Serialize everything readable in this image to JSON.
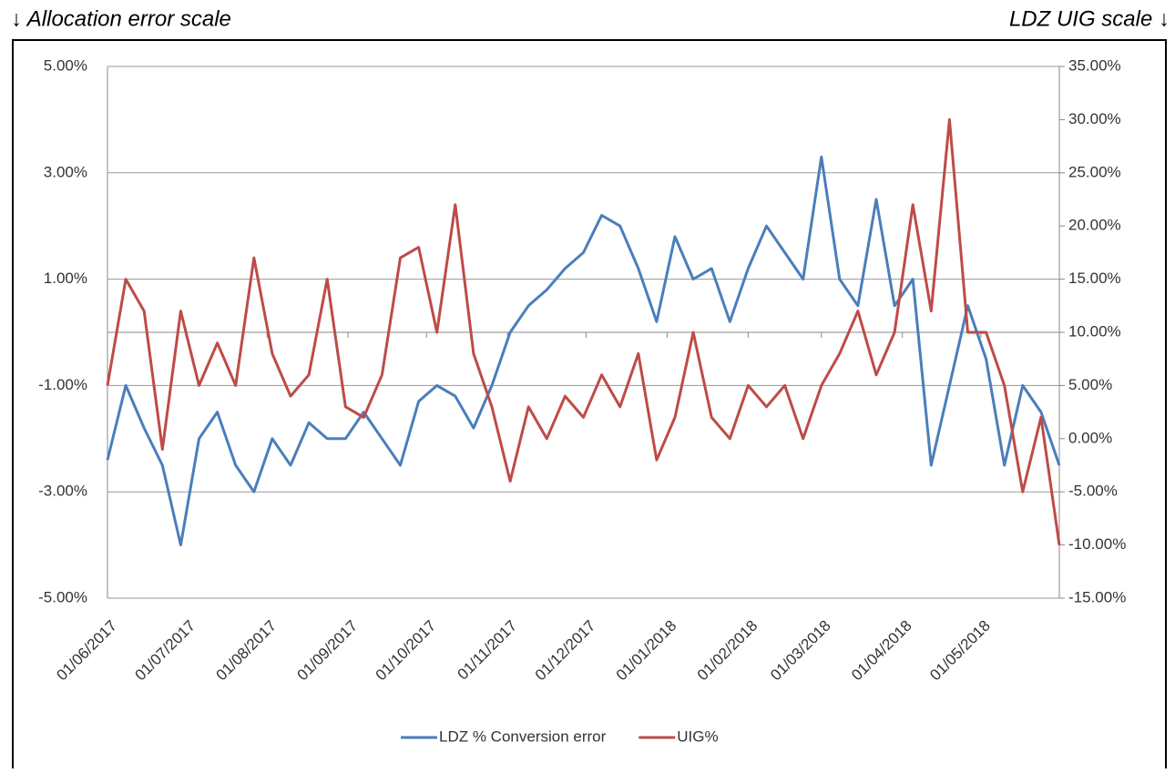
{
  "chart_data": {
    "type": "line",
    "left_note": "↓ Allocation error scale",
    "right_note": "LDZ UIG scale ↓",
    "x": [
      "01/06/2017",
      "08/06/2017",
      "15/06/2017",
      "22/06/2017",
      "29/06/2017",
      "06/07/2017",
      "13/07/2017",
      "20/07/2017",
      "27/07/2017",
      "03/08/2017",
      "10/08/2017",
      "17/08/2017",
      "24/08/2017",
      "31/08/2017",
      "07/09/2017",
      "14/09/2017",
      "21/09/2017",
      "28/09/2017",
      "05/10/2017",
      "12/10/2017",
      "19/10/2017",
      "26/10/2017",
      "02/11/2017",
      "09/11/2017",
      "16/11/2017",
      "23/11/2017",
      "30/11/2017",
      "07/12/2017",
      "14/12/2017",
      "21/12/2017",
      "28/12/2017",
      "04/01/2018",
      "11/01/2018",
      "18/01/2018",
      "25/01/2018",
      "01/02/2018",
      "08/02/2018",
      "15/02/2018",
      "22/02/2018",
      "01/03/2018",
      "08/03/2018",
      "15/03/2018",
      "22/03/2018",
      "29/03/2018",
      "05/04/2018",
      "12/04/2018",
      "19/04/2018",
      "26/04/2018",
      "03/05/2018",
      "10/05/2018",
      "17/05/2018",
      "24/05/2018",
      "31/05/2018"
    ],
    "xlim": [
      "01/06/2017",
      "31/05/2018"
    ],
    "xticks": [
      "01/06/2017",
      "01/07/2017",
      "01/08/2017",
      "01/09/2017",
      "01/10/2017",
      "01/11/2017",
      "01/12/2017",
      "01/01/2018",
      "01/02/2018",
      "01/03/2018",
      "01/04/2018",
      "01/05/2018"
    ],
    "ylim": [
      -5,
      5
    ],
    "yticks": [
      {
        "value": 5,
        "label": "5.00%"
      },
      {
        "value": 3,
        "label": "3.00%"
      },
      {
        "value": 1,
        "label": "1.00%"
      },
      {
        "value": -1,
        "label": "-1.00%"
      },
      {
        "value": -3,
        "label": "-3.00%"
      },
      {
        "value": -5,
        "label": "-5.00%"
      }
    ],
    "y2lim": [
      -15,
      35
    ],
    "y2ticks": [
      {
        "value": 35,
        "label": "35.00%"
      },
      {
        "value": 30,
        "label": "30.00%"
      },
      {
        "value": 25,
        "label": "25.00%"
      },
      {
        "value": 20,
        "label": "20.00%"
      },
      {
        "value": 15,
        "label": "15.00%"
      },
      {
        "value": 10,
        "label": "10.00%"
      },
      {
        "value": 5,
        "label": "5.00%"
      },
      {
        "value": 0,
        "label": "0.00%"
      },
      {
        "value": -5,
        "label": "-5.00%"
      },
      {
        "value": -10,
        "label": "-10.00%"
      },
      {
        "value": -15,
        "label": "-15.00%"
      }
    ],
    "grid": true,
    "series": [
      {
        "name": "LDZ % Conversion error",
        "color": "#4a7ebb",
        "values": [
          -2.4,
          -1.0,
          -1.8,
          -2.5,
          -4.0,
          -2.0,
          -1.5,
          -2.5,
          -3.0,
          -2.0,
          -2.5,
          -1.7,
          -2.0,
          -2.0,
          -1.5,
          -2.0,
          -2.5,
          -1.3,
          -1.0,
          -1.2,
          -1.8,
          -1.0,
          0.0,
          0.5,
          0.8,
          1.2,
          1.5,
          2.2,
          2.0,
          1.2,
          0.2,
          1.8,
          1.0,
          1.2,
          0.2,
          1.2,
          2.0,
          1.5,
          1.0,
          3.3,
          1.0,
          0.5,
          2.5,
          0.5,
          1.0,
          -2.5,
          -1.0,
          0.5,
          -0.5,
          -2.5,
          -1.0,
          -1.5,
          -2.5
        ]
      },
      {
        "name": "UIG%",
        "color": "#be4b48",
        "axis": "y2",
        "values": [
          5,
          15,
          12,
          -1,
          12,
          5,
          9,
          5,
          17,
          8,
          4,
          6,
          15,
          3,
          2,
          6,
          17,
          18,
          10,
          22,
          8,
          3,
          -4,
          3,
          0,
          4,
          2,
          6,
          3,
          8,
          -2,
          2,
          10,
          2,
          0,
          5,
          3,
          5,
          0,
          5,
          8,
          12,
          6,
          10,
          22,
          12,
          30,
          10,
          10,
          5,
          -5,
          2,
          -10
        ]
      }
    ]
  }
}
